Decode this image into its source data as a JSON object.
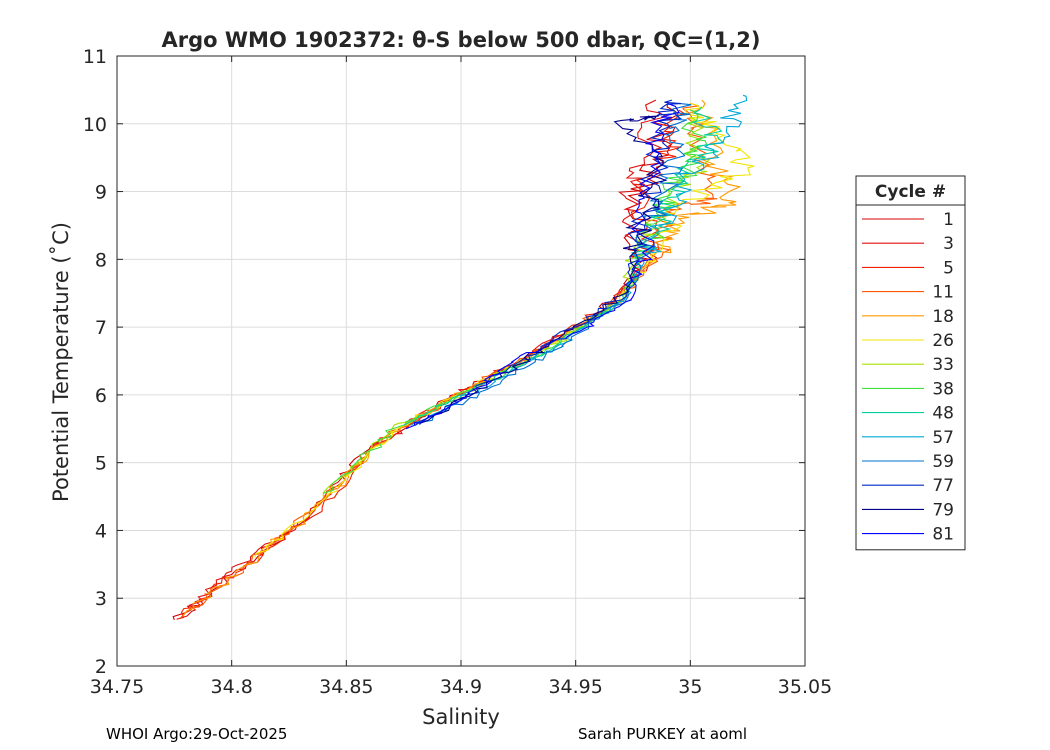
{
  "chart_data": {
    "type": "line",
    "title": "Argo WMO 1902372: θ-S below 500 dbar,  QC=(1,2)",
    "xlabel": "Salinity",
    "ylabel": "Potential Temperature (˚C)",
    "xlim": [
      34.75,
      35.05
    ],
    "ylim": [
      2,
      11
    ],
    "xticks": [
      "34.75",
      "34.8",
      "34.85",
      "34.9",
      "34.95",
      "35",
      "35.05"
    ],
    "yticks": [
      "2",
      "3",
      "4",
      "5",
      "6",
      "7",
      "8",
      "9",
      "10",
      "11"
    ],
    "grid": true,
    "legend": {
      "title": "Cycle #",
      "placement": "right-outside"
    },
    "series": [
      {
        "name": "1",
        "color": "#d40000",
        "points": [
          [
            34.775,
            2.68
          ],
          [
            34.8,
            3.35
          ],
          [
            34.83,
            4.1
          ],
          [
            34.86,
            5.2
          ],
          [
            34.895,
            5.95
          ],
          [
            34.925,
            6.5
          ],
          [
            34.96,
            7.2
          ],
          [
            34.978,
            7.85
          ],
          [
            34.975,
            8.6
          ],
          [
            34.985,
            9.5
          ],
          [
            34.99,
            10.3
          ]
        ]
      },
      {
        "name": "3",
        "color": "#e01010",
        "points": [
          [
            34.777,
            2.7
          ],
          [
            34.8,
            3.4
          ],
          [
            34.832,
            4.15
          ],
          [
            34.862,
            5.25
          ],
          [
            34.897,
            5.98
          ],
          [
            34.928,
            6.55
          ],
          [
            34.962,
            7.25
          ],
          [
            34.98,
            7.9
          ],
          [
            34.972,
            8.9
          ],
          [
            34.98,
            9.4
          ],
          [
            34.985,
            10.35
          ]
        ]
      },
      {
        "name": "5",
        "color": "#f02000",
        "points": [
          [
            34.776,
            2.69
          ],
          [
            34.802,
            3.38
          ],
          [
            34.835,
            4.2
          ],
          [
            34.864,
            5.3
          ],
          [
            34.898,
            6.0
          ],
          [
            34.93,
            6.6
          ],
          [
            34.964,
            7.3
          ],
          [
            34.982,
            7.95
          ],
          [
            34.978,
            9.0
          ],
          [
            34.99,
            9.6
          ],
          [
            34.995,
            10.2
          ]
        ]
      },
      {
        "name": "11",
        "color": "#ff5a00",
        "points": [
          [
            34.778,
            2.72
          ],
          [
            34.805,
            3.45
          ],
          [
            34.833,
            4.25
          ],
          [
            34.866,
            5.35
          ],
          [
            34.9,
            6.02
          ],
          [
            34.932,
            6.62
          ],
          [
            34.965,
            7.3
          ],
          [
            34.985,
            8.0
          ],
          [
            34.99,
            8.7
          ],
          [
            35.01,
            8.9
          ],
          [
            35.005,
            9.8
          ],
          [
            35.0,
            10.3
          ]
        ]
      },
      {
        "name": "18",
        "color": "#ff9900",
        "points": [
          [
            34.779,
            2.75
          ],
          [
            34.807,
            3.5
          ],
          [
            34.836,
            4.3
          ],
          [
            34.868,
            5.4
          ],
          [
            34.902,
            6.05
          ],
          [
            34.934,
            6.64
          ],
          [
            34.967,
            7.32
          ],
          [
            34.984,
            8.05
          ],
          [
            34.995,
            8.6
          ],
          [
            35.02,
            8.85
          ],
          [
            35.01,
            9.5
          ],
          [
            35.005,
            10.35
          ]
        ]
      },
      {
        "name": "26",
        "color": "#f2e600",
        "points": [
          [
            34.81,
            3.6
          ],
          [
            34.84,
            4.45
          ],
          [
            34.87,
            5.45
          ],
          [
            34.905,
            6.1
          ],
          [
            34.936,
            6.66
          ],
          [
            34.968,
            7.35
          ],
          [
            34.985,
            8.1
          ],
          [
            34.995,
            8.8
          ],
          [
            35.025,
            9.35
          ],
          [
            35.01,
            9.9
          ],
          [
            35.0,
            10.3
          ]
        ]
      },
      {
        "name": "33",
        "color": "#a8e000",
        "points": [
          [
            34.84,
            4.5
          ],
          [
            34.87,
            5.5
          ],
          [
            34.906,
            6.12
          ],
          [
            34.938,
            6.68
          ],
          [
            34.969,
            7.38
          ],
          [
            34.978,
            8.25
          ],
          [
            34.99,
            8.9
          ],
          [
            35.005,
            9.3
          ],
          [
            35.0,
            10.1
          ]
        ]
      },
      {
        "name": "38",
        "color": "#40e040",
        "points": [
          [
            34.84,
            4.55
          ],
          [
            34.872,
            5.52
          ],
          [
            34.908,
            6.14
          ],
          [
            34.94,
            6.7
          ],
          [
            34.97,
            7.4
          ],
          [
            34.982,
            8.3
          ],
          [
            34.992,
            9.0
          ],
          [
            35.003,
            9.6
          ],
          [
            35.0,
            10.2
          ]
        ]
      },
      {
        "name": "48",
        "color": "#00d0a0",
        "points": [
          [
            34.875,
            5.55
          ],
          [
            34.91,
            6.16
          ],
          [
            34.942,
            6.72
          ],
          [
            34.971,
            7.42
          ],
          [
            34.984,
            8.35
          ],
          [
            34.995,
            9.1
          ],
          [
            35.01,
            9.7
          ],
          [
            35.005,
            10.25
          ]
        ]
      },
      {
        "name": "57",
        "color": "#00a8d8",
        "points": [
          [
            34.878,
            5.55
          ],
          [
            34.915,
            6.2
          ],
          [
            34.944,
            6.75
          ],
          [
            34.972,
            7.45
          ],
          [
            34.986,
            8.4
          ],
          [
            34.997,
            9.15
          ],
          [
            35.015,
            9.8
          ],
          [
            35.023,
            10.42
          ]
        ]
      },
      {
        "name": "59",
        "color": "#0070d0",
        "points": [
          [
            34.88,
            5.55
          ],
          [
            34.918,
            6.22
          ],
          [
            34.946,
            6.78
          ],
          [
            34.973,
            7.47
          ],
          [
            34.983,
            8.45
          ],
          [
            34.99,
            9.2
          ],
          [
            34.995,
            9.9
          ],
          [
            34.995,
            10.3
          ]
        ]
      },
      {
        "name": "77",
        "color": "#0028c8",
        "points": [
          [
            34.88,
            5.55
          ],
          [
            34.912,
            6.2
          ],
          [
            34.94,
            6.8
          ],
          [
            34.972,
            7.5
          ],
          [
            34.98,
            8.5
          ],
          [
            34.985,
            9.3
          ],
          [
            34.99,
            10.0
          ],
          [
            34.992,
            10.35
          ]
        ]
      },
      {
        "name": "79",
        "color": "#00008c",
        "points": [
          [
            34.882,
            5.56
          ],
          [
            34.914,
            6.22
          ],
          [
            34.942,
            6.82
          ],
          [
            34.973,
            7.52
          ],
          [
            34.978,
            8.55
          ],
          [
            34.988,
            9.4
          ],
          [
            34.97,
            10.05
          ],
          [
            34.985,
            10.1
          ]
        ]
      },
      {
        "name": "81",
        "color": "#0000ff",
        "points": [
          [
            34.876,
            5.5
          ],
          [
            34.9,
            5.92
          ],
          [
            34.925,
            6.55
          ],
          [
            34.955,
            7.0
          ],
          [
            34.975,
            7.45
          ],
          [
            34.98,
            8.6
          ],
          [
            34.985,
            9.5
          ],
          [
            34.99,
            10.3
          ]
        ]
      }
    ]
  },
  "footer": {
    "left": "WHOI Argo:29-Oct-2025",
    "right": "Sarah PURKEY at aoml"
  }
}
